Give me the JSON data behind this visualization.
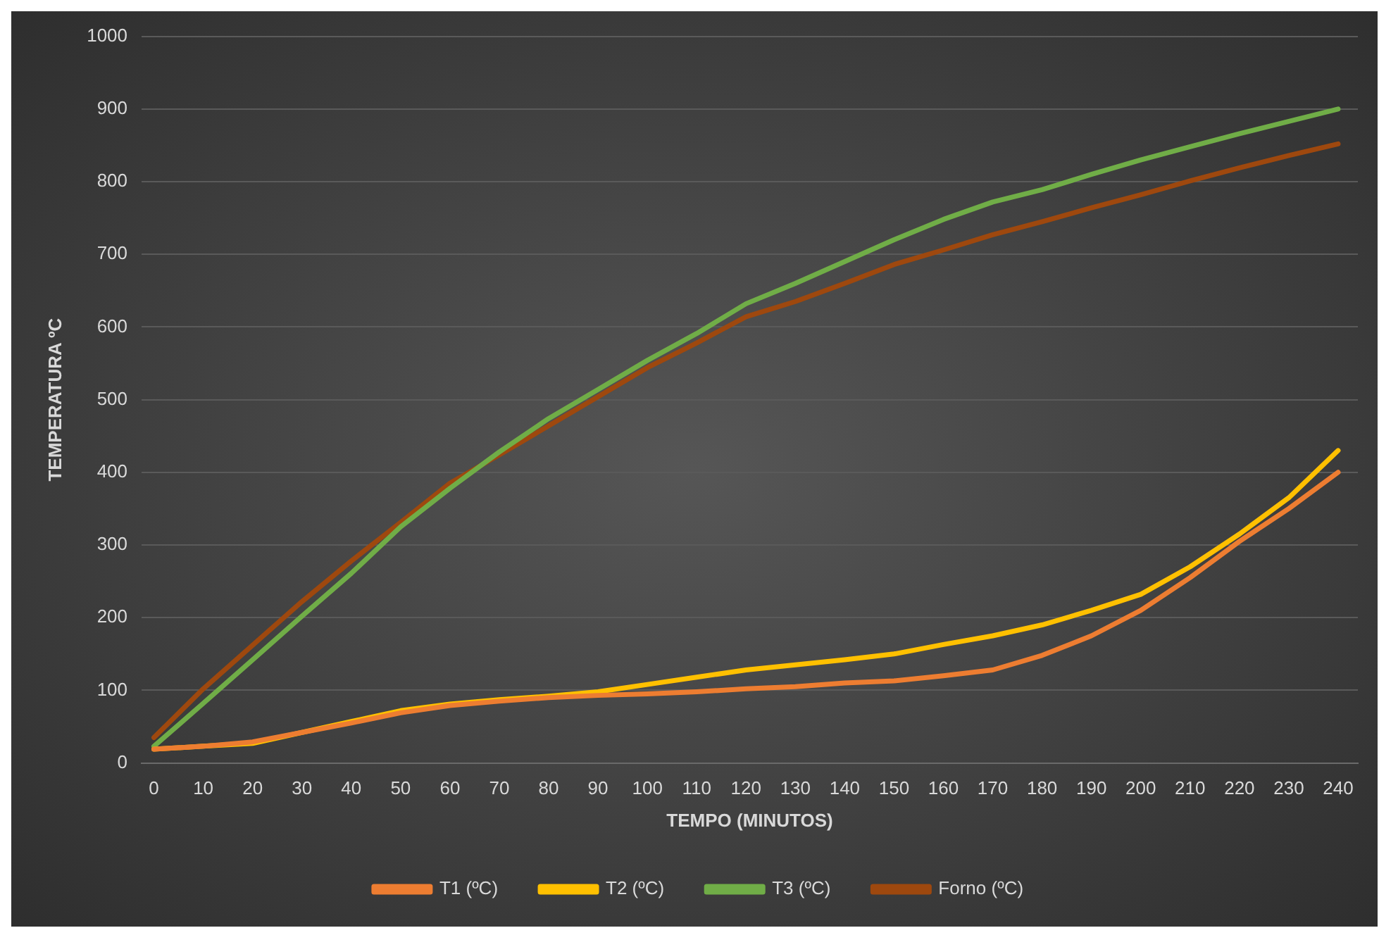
{
  "chart_data": {
    "type": "line",
    "xlabel": "TEMPO (MINUTOS)",
    "ylabel": "TEMPERATURA ºC",
    "x": [
      0,
      10,
      20,
      30,
      40,
      50,
      60,
      70,
      80,
      90,
      100,
      110,
      120,
      130,
      140,
      150,
      160,
      170,
      180,
      190,
      200,
      210,
      220,
      230,
      240
    ],
    "xlim": [
      -2.5,
      244
    ],
    "xticks": [
      0,
      10,
      20,
      30,
      40,
      50,
      60,
      70,
      80,
      90,
      100,
      110,
      120,
      130,
      140,
      150,
      160,
      170,
      180,
      190,
      200,
      210,
      220,
      230,
      240
    ],
    "ylim": [
      0,
      1000
    ],
    "yticks": [
      0,
      100,
      200,
      300,
      400,
      500,
      600,
      700,
      800,
      900,
      1000
    ],
    "grid": "y",
    "legend": "bottom",
    "marker": "none",
    "line_style": "solid",
    "series": [
      {
        "name": "T1 (ºC)",
        "color": "#ed7d31",
        "values": [
          19,
          23,
          29,
          42,
          55,
          69,
          79,
          85,
          90,
          93,
          95,
          98,
          102,
          105,
          110,
          113,
          120,
          128,
          148,
          175,
          210,
          255,
          305,
          350,
          400
        ]
      },
      {
        "name": "T2 (ºC)",
        "color": "#ffc000",
        "values": [
          19,
          23,
          27,
          42,
          57,
          72,
          81,
          87,
          92,
          98,
          108,
          118,
          128,
          135,
          142,
          150,
          163,
          175,
          190,
          210,
          232,
          270,
          315,
          365,
          430
        ]
      },
      {
        "name": "T3 (ºC)",
        "color": "#70ad47",
        "values": [
          23,
          82,
          142,
          202,
          261,
          325,
          378,
          428,
          474,
          514,
          554,
          591,
          632,
          660,
          690,
          720,
          748,
          772,
          789,
          810,
          830,
          848,
          866,
          883,
          900
        ]
      },
      {
        "name": "Forno (ºC)",
        "color": "#9e480e",
        "values": [
          35,
          102,
          162,
          222,
          278,
          331,
          385,
          424,
          464,
          504,
          544,
          578,
          614,
          635,
          660,
          686,
          706,
          727,
          745,
          764,
          782,
          801,
          819,
          836,
          852
        ]
      }
    ]
  }
}
